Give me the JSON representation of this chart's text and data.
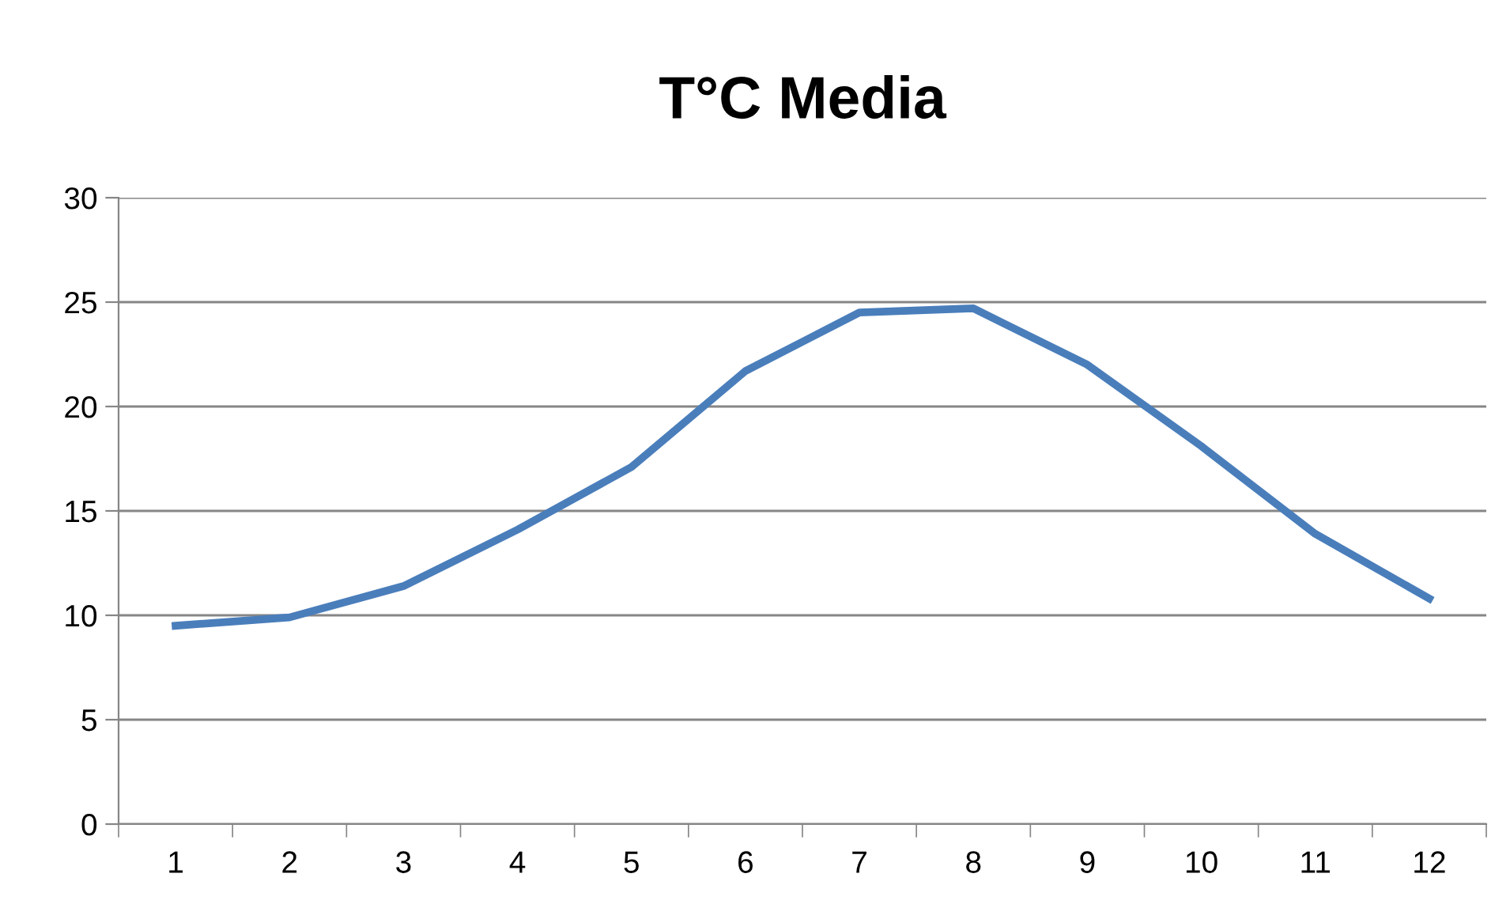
{
  "chart_data": {
    "type": "line",
    "title": "T°C Media",
    "categories": [
      "1",
      "2",
      "3",
      "4",
      "5",
      "6",
      "7",
      "8",
      "9",
      "10",
      "11",
      "12"
    ],
    "series": [
      {
        "color": "#4a7ebb",
        "values": [
          9.5,
          9.9,
          11.4,
          14.1,
          17.1,
          21.7,
          24.5,
          24.7,
          22.0,
          18.1,
          13.9,
          10.8
        ]
      }
    ],
    "ylim": [
      0,
      30
    ],
    "yticks": [
      0,
      5,
      10,
      15,
      20,
      25,
      30
    ],
    "grid": "y",
    "legend": false,
    "marker": "none",
    "line_style": "solid"
  }
}
